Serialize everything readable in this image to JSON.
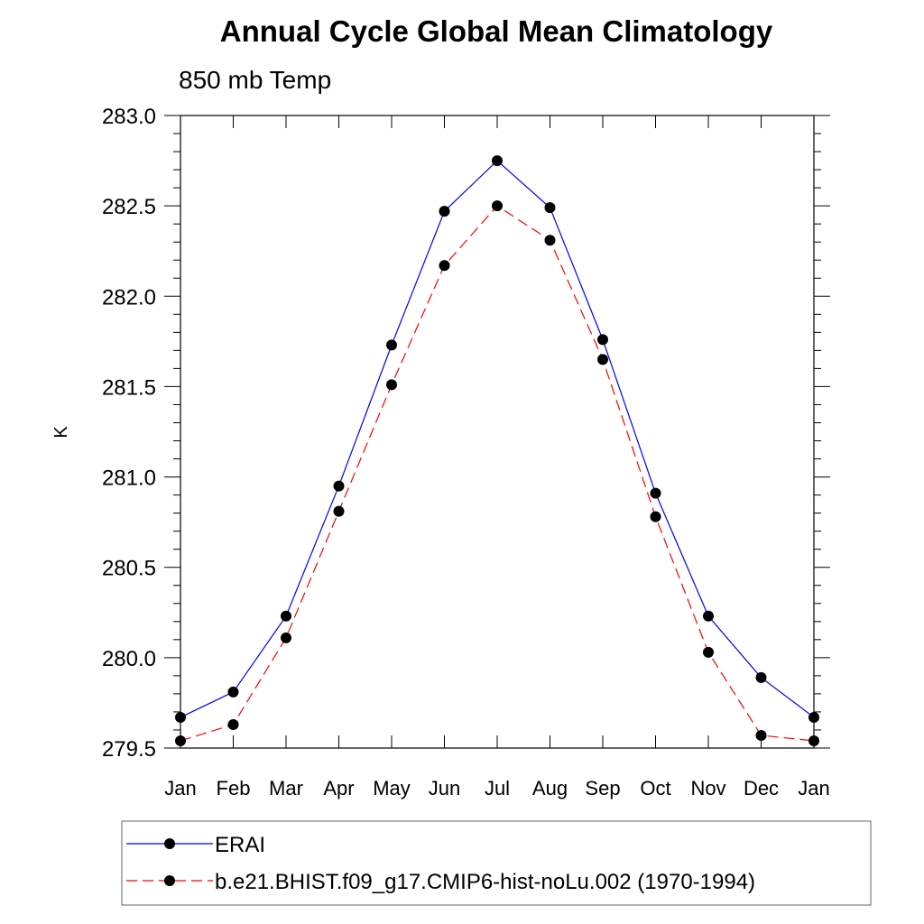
{
  "chart_data": {
    "type": "line",
    "title": "Annual Cycle Global Mean Climatology",
    "subtitle": "850 mb Temp",
    "xlabel": "",
    "ylabel": "K",
    "categories": [
      "Jan",
      "Feb",
      "Mar",
      "Apr",
      "May",
      "Jun",
      "Jul",
      "Aug",
      "Sep",
      "Oct",
      "Nov",
      "Dec",
      "Jan"
    ],
    "ylim": [
      279.5,
      283.0
    ],
    "yticks": [
      "279.5",
      "280.0",
      "280.5",
      "281.0",
      "281.5",
      "282.0",
      "282.5",
      "283.0"
    ],
    "series": [
      {
        "name": "ERAI",
        "color": "#0000ff",
        "dash": "solid",
        "values": [
          279.67,
          279.81,
          280.23,
          280.95,
          281.73,
          282.47,
          282.75,
          282.49,
          281.76,
          280.91,
          280.23,
          279.89,
          279.67
        ]
      },
      {
        "name": "b.e21.BHIST.f09_g17.CMIP6-hist-noLu.002 (1970-1994)",
        "color": "#ff0000",
        "dash": "dashed",
        "values": [
          279.54,
          279.63,
          280.11,
          280.81,
          281.51,
          282.17,
          282.5,
          282.31,
          281.65,
          280.78,
          280.03,
          279.57,
          279.54
        ]
      }
    ],
    "legend_position": "bottom"
  }
}
